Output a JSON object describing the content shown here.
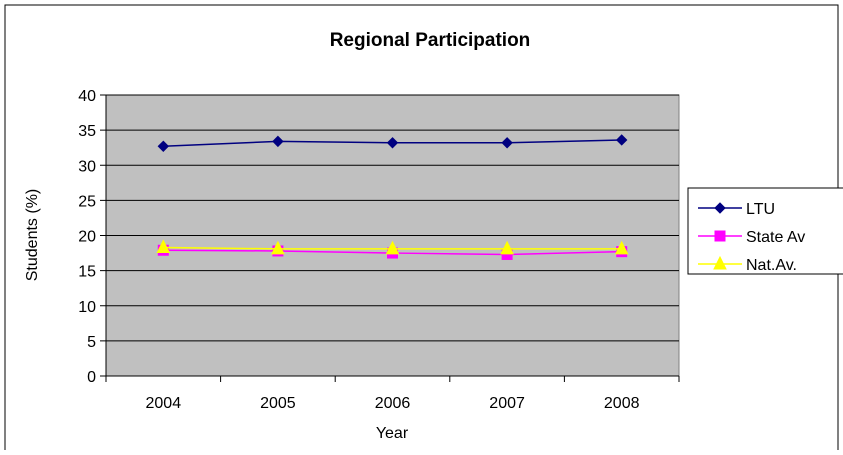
{
  "chart_data": {
    "type": "line",
    "title": "Regional Participation",
    "xlabel": "Year",
    "ylabel": "Students (%)",
    "categories": [
      "2004",
      "2005",
      "2006",
      "2007",
      "2008"
    ],
    "ylim": [
      0,
      40
    ],
    "yticks": [
      0,
      5,
      10,
      15,
      20,
      25,
      30,
      35,
      40
    ],
    "grid": true,
    "legend_position": "right",
    "plot_background": "#c0c0c0",
    "series": [
      {
        "name": "LTU",
        "values": [
          32.7,
          33.4,
          33.2,
          33.2,
          33.6
        ],
        "color": "#000080",
        "marker": "diamond"
      },
      {
        "name": "State Av",
        "values": [
          17.9,
          17.8,
          17.5,
          17.3,
          17.7
        ],
        "color": "#ff00ff",
        "marker": "square"
      },
      {
        "name": "Nat.Av.",
        "values": [
          18.3,
          18.1,
          18.1,
          18.1,
          18.1
        ],
        "color": "#ffff00",
        "marker": "triangle"
      }
    ]
  }
}
